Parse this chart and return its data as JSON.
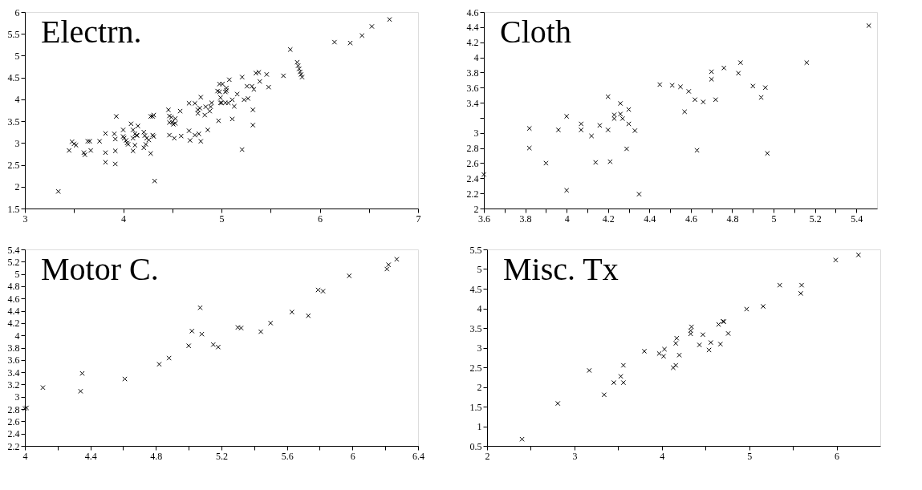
{
  "chart_data": [
    {
      "type": "scatter",
      "title": "Electrn.",
      "marker": "cross",
      "xlim": [
        3,
        7
      ],
      "ylim": [
        1.5,
        6
      ],
      "xticks": [
        3,
        {
          "value": 3.5,
          "label": null
        },
        4,
        {
          "value": 4.5,
          "label": null
        },
        5,
        {
          "value": 5.5,
          "label": null
        },
        6,
        {
          "value": 6.5,
          "label": null
        },
        7
      ],
      "yticks": [
        1.5,
        2,
        2.5,
        3,
        3.5,
        4,
        4.5,
        5,
        5.5,
        6
      ],
      "series": [
        {
          "color": "#000000",
          "x": [
            3.34,
            3.45,
            3.48,
            3.5,
            3.52,
            3.6,
            3.61,
            3.64,
            3.66,
            3.67,
            3.76,
            3.82,
            3.82,
            3.82,
            3.91,
            3.92,
            3.92,
            3.92,
            3.93,
            4.0,
            4.0,
            4.01,
            4.03,
            4.04,
            4.05,
            4.08,
            4.1,
            4.1,
            4.1,
            4.12,
            4.12,
            4.14,
            4.15,
            4.14,
            4.21,
            4.21,
            4.22,
            4.23,
            4.24,
            4.26,
            4.28,
            4.28,
            4.3,
            4.31,
            4.3,
            4.31,
            4.32,
            4.46,
            4.47,
            4.47,
            4.47,
            4.49,
            4.5,
            4.51,
            4.52,
            4.53,
            4.53,
            4.58,
            4.59,
            4.67,
            4.67,
            4.68,
            4.73,
            4.73,
            4.76,
            4.76,
            4.77,
            4.78,
            4.79,
            4.79,
            4.83,
            4.84,
            4.86,
            4.88,
            4.89,
            4.9,
            4.97,
            4.98,
            4.96,
            4.99,
            4.99,
            4.98,
            5.01,
            5.0,
            5.04,
            5.05,
            5.05,
            5.04,
            5.07,
            5.08,
            5.11,
            5.13,
            5.11,
            5.16,
            5.21,
            5.21,
            5.23,
            5.27,
            5.26,
            5.31,
            5.33,
            5.32,
            5.32,
            5.35,
            5.38,
            5.39,
            5.46,
            5.48,
            5.63,
            5.7,
            5.77,
            5.78,
            5.79,
            5.8,
            5.81,
            5.82,
            6.15,
            6.31,
            6.43,
            6.53,
            6.71
          ],
          "values": [
            1.89,
            2.83,
            3.03,
            2.98,
            2.95,
            2.78,
            2.73,
            3.04,
            3.04,
            2.83,
            3.04,
            3.22,
            2.78,
            2.56,
            3.21,
            3.09,
            2.82,
            2.52,
            3.61,
            3.3,
            3.15,
            3.11,
            3.06,
            3.0,
            2.97,
            3.44,
            3.3,
            3.11,
            2.82,
            3.21,
            2.95,
            3.18,
            3.39,
            3.17,
            3.25,
            2.89,
            3.17,
            2.97,
            3.11,
            3.07,
            2.76,
            3.61,
            3.61,
            3.64,
            3.18,
            3.15,
            2.13,
            3.76,
            3.18,
            3.62,
            3.47,
            3.59,
            3.48,
            3.43,
            3.11,
            3.56,
            3.45,
            3.73,
            3.16,
            3.28,
            3.91,
            3.06,
            3.18,
            3.91,
            3.76,
            3.68,
            3.21,
            3.8,
            4.05,
            3.04,
            3.64,
            3.83,
            3.3,
            3.73,
            3.83,
            3.92,
            3.51,
            4.35,
            4.19,
            3.92,
            4.04,
            4.17,
            4.35,
            3.92,
            4.17,
            4.2,
            4.26,
            3.92,
            3.92,
            4.45,
            3.99,
            3.84,
            3.55,
            4.12,
            4.51,
            2.85,
            3.99,
            4.02,
            4.3,
            4.3,
            4.23,
            3.76,
            3.41,
            4.6,
            4.62,
            4.41,
            4.57,
            4.28,
            4.54,
            5.14,
            4.85,
            4.77,
            4.7,
            4.63,
            4.57,
            4.51,
            5.31,
            5.29,
            5.46,
            5.67,
            5.83
          ]
        }
      ]
    },
    {
      "type": "scatter",
      "title": "Cloth",
      "marker": "cross",
      "xlim": [
        3.6,
        5.5
      ],
      "ylim": [
        2,
        4.6
      ],
      "xticks": [
        3.6,
        {
          "value": 3.7,
          "label": null
        },
        3.8,
        {
          "value": 3.9,
          "label": null
        },
        4,
        {
          "value": 4.1,
          "label": null
        },
        4.2,
        {
          "value": 4.3,
          "label": null
        },
        4.4,
        {
          "value": 4.5,
          "label": null
        },
        4.6,
        {
          "value": 4.7,
          "label": null
        },
        4.8,
        {
          "value": 4.9,
          "label": null
        },
        5,
        {
          "value": 5.1,
          "label": null
        },
        5.2,
        {
          "value": 5.3,
          "label": null
        },
        5.4
      ],
      "yticks": [
        2,
        2.2,
        2.4,
        2.6,
        2.8,
        3,
        {
          "value": 3.2,
          "label": null
        },
        3.4,
        3.6,
        3.8,
        4,
        4.2,
        4.4,
        4.6
      ],
      "series": [
        {
          "color": "#000000",
          "x": [
            3.6,
            3.82,
            3.82,
            3.9,
            3.96,
            4.0,
            4.0,
            4.07,
            4.07,
            4.12,
            4.14,
            4.16,
            4.2,
            4.2,
            4.21,
            4.23,
            4.23,
            4.26,
            4.26,
            4.27,
            4.29,
            4.3,
            4.3,
            4.33,
            4.35,
            4.45,
            4.51,
            4.55,
            4.57,
            4.59,
            4.62,
            4.63,
            4.66,
            4.7,
            4.7,
            4.72,
            4.76,
            4.84,
            4.83,
            4.9,
            4.94,
            4.96,
            4.97,
            5.16,
            5.46
          ],
          "values": [
            2.45,
            3.06,
            2.8,
            2.6,
            3.04,
            3.22,
            2.24,
            3.04,
            3.12,
            2.96,
            2.61,
            3.1,
            3.04,
            3.48,
            2.62,
            3.24,
            3.19,
            3.39,
            3.25,
            3.19,
            2.79,
            3.12,
            3.31,
            3.03,
            2.19,
            3.64,
            3.63,
            3.61,
            3.28,
            3.55,
            3.44,
            2.77,
            3.41,
            3.81,
            3.71,
            3.44,
            3.86,
            3.93,
            3.79,
            3.62,
            3.47,
            3.6,
            2.73,
            3.93,
            4.42
          ]
        }
      ]
    },
    {
      "type": "scatter",
      "title": "Motor C.",
      "marker": "cross",
      "xlim": [
        4,
        6.4
      ],
      "ylim": [
        2.2,
        5.4
      ],
      "xticks": [
        4,
        {
          "value": 4.2,
          "label": null
        },
        4.4,
        {
          "value": 4.6,
          "label": null
        },
        4.8,
        {
          "value": 5.0,
          "label": null
        },
        5.2,
        {
          "value": 5.4,
          "label": null
        },
        5.6,
        {
          "value": 5.8,
          "label": null
        },
        6,
        {
          "value": 6.2,
          "label": null
        },
        6.4
      ],
      "yticks": [
        2.2,
        2.4,
        2.6,
        2.8,
        3,
        3.2,
        3.4,
        3.6,
        3.8,
        4,
        4.2,
        4.4,
        4.6,
        4.8,
        5,
        5.2,
        5.4
      ],
      "series": [
        {
          "color": "#000000",
          "x": [
            4.0,
            4.01,
            4.11,
            4.34,
            4.35,
            4.61,
            4.82,
            4.88,
            5.0,
            5.02,
            5.07,
            5.08,
            5.15,
            5.18,
            5.3,
            5.32,
            5.44,
            5.5,
            5.63,
            5.73,
            5.79,
            5.82,
            5.98,
            6.21,
            6.22,
            6.27
          ],
          "values": [
            2.81,
            2.82,
            3.15,
            3.09,
            3.38,
            3.29,
            3.53,
            3.63,
            3.83,
            4.07,
            4.45,
            4.02,
            3.85,
            3.81,
            4.13,
            4.12,
            4.06,
            4.2,
            4.38,
            4.32,
            4.74,
            4.72,
            4.97,
            5.08,
            5.15,
            5.24
          ]
        }
      ]
    },
    {
      "type": "scatter",
      "title": "Misc. Tx",
      "marker": "cross",
      "xlim": [
        2,
        6.5
      ],
      "ylim": [
        0.5,
        5.5
      ],
      "xticks": [
        2,
        {
          "value": 2.5,
          "label": null
        },
        3,
        {
          "value": 3.5,
          "label": null
        },
        4,
        {
          "value": 4.5,
          "label": null
        },
        5,
        {
          "value": 5.5,
          "label": null
        },
        6
      ],
      "yticks": [
        0.5,
        1,
        1.5,
        2,
        2.5,
        3,
        3.5,
        4,
        4.5,
        5,
        5.5
      ],
      "series": [
        {
          "color": "#000000",
          "x": [
            2.4,
            2.81,
            3.17,
            3.34,
            3.45,
            3.53,
            3.56,
            3.56,
            3.8,
            3.97,
            4.02,
            4.03,
            4.13,
            4.16,
            4.16,
            4.17,
            4.2,
            4.33,
            4.33,
            4.34,
            4.43,
            4.47,
            4.54,
            4.56,
            4.65,
            4.67,
            4.7,
            4.71,
            4.76,
            4.97,
            5.16,
            5.35,
            5.59,
            5.6,
            5.99,
            6.25
          ],
          "values": [
            0.67,
            1.58,
            2.42,
            1.8,
            2.11,
            2.27,
            2.11,
            2.55,
            2.91,
            2.85,
            2.78,
            2.96,
            2.49,
            2.55,
            3.11,
            3.24,
            2.81,
            3.35,
            3.43,
            3.53,
            3.07,
            3.33,
            2.94,
            3.13,
            3.59,
            3.09,
            3.67,
            3.66,
            3.36,
            3.98,
            4.05,
            4.59,
            4.38,
            4.59,
            5.23,
            5.36
          ]
        }
      ]
    }
  ]
}
